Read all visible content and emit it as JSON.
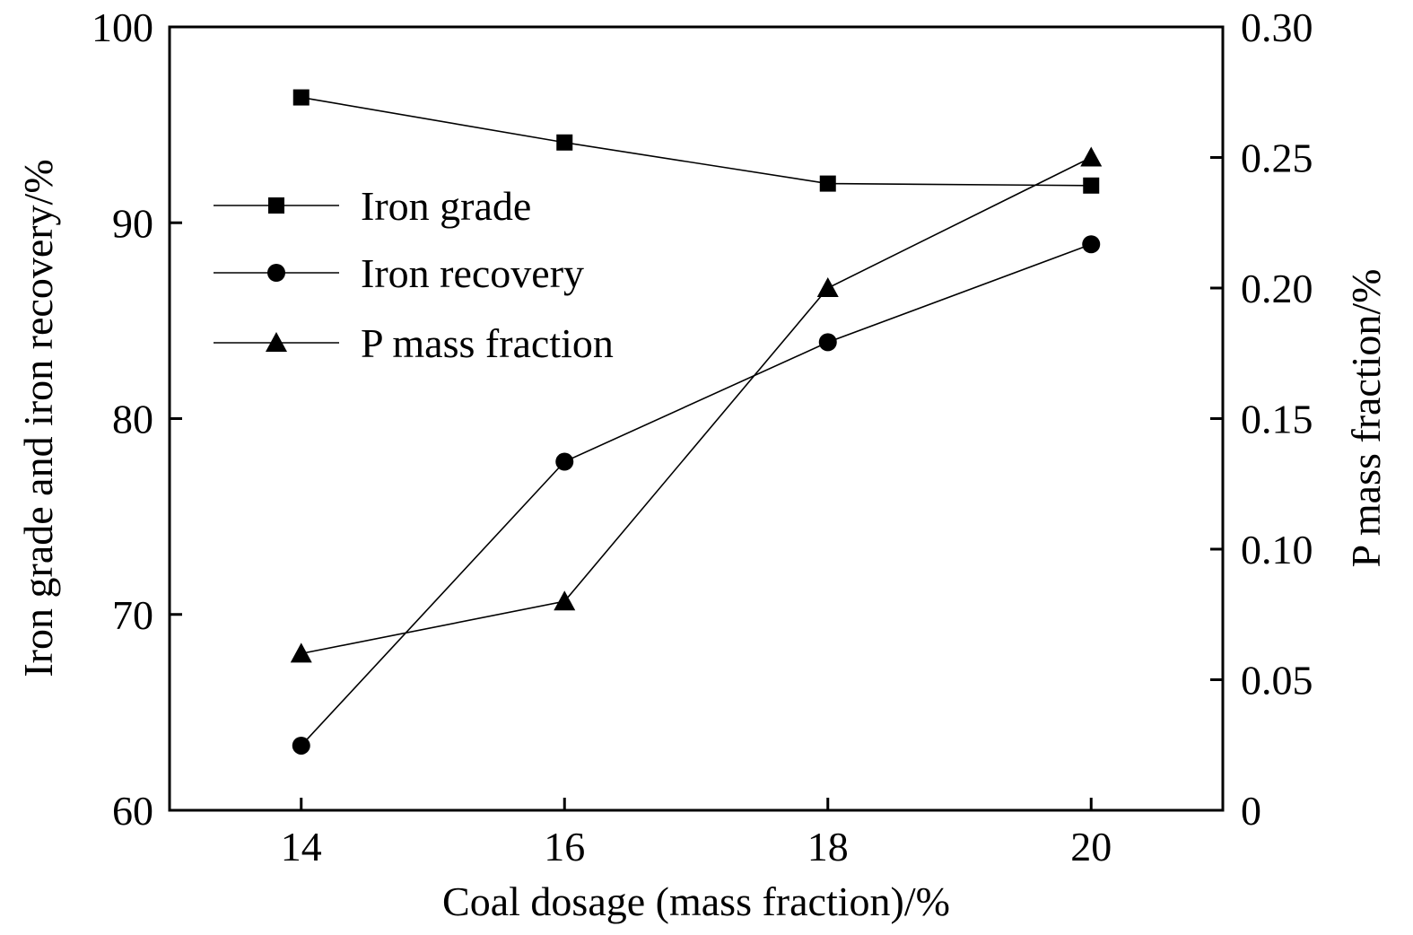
{
  "chart_data": {
    "type": "line",
    "xlabel": "Coal dosage (mass fraction)/%",
    "ylabel_left": "Iron grade and iron recovery/%",
    "ylabel_right": "P mass fraction/%",
    "x": [
      14,
      16,
      18,
      20
    ],
    "xlim": [
      13,
      21
    ],
    "xticks": [
      "14",
      "16",
      "18",
      "20"
    ],
    "ylim_left": [
      60,
      100
    ],
    "yticks_left": [
      "60",
      "70",
      "80",
      "90",
      "100"
    ],
    "ylim_right": [
      0,
      0.3
    ],
    "yticks_right": [
      "0",
      "0.05",
      "0.10",
      "0.15",
      "0.20",
      "0.25",
      "0.30"
    ],
    "legend_position": "upper-left",
    "series": [
      {
        "name": "Iron grade",
        "axis": "left",
        "marker": "square",
        "values": [
          96.4,
          94.1,
          92.0,
          91.9
        ]
      },
      {
        "name": "Iron recovery",
        "axis": "left",
        "marker": "circle",
        "values": [
          63.3,
          77.8,
          83.9,
          88.9
        ]
      },
      {
        "name": "P mass fraction",
        "axis": "right",
        "marker": "triangle",
        "values": [
          0.06,
          0.08,
          0.2,
          0.25
        ]
      }
    ]
  }
}
